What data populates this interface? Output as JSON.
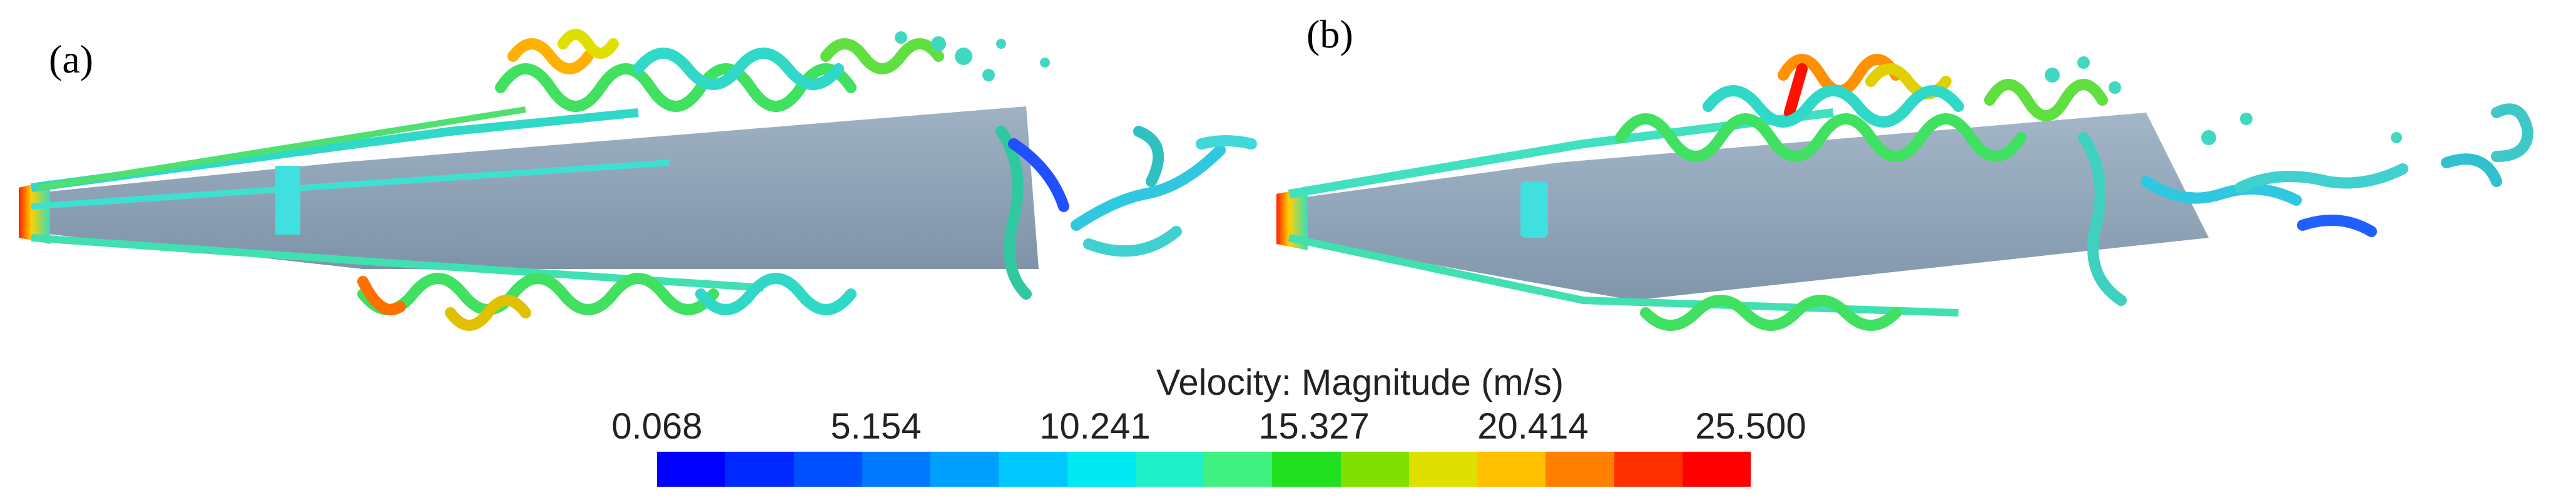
{
  "panels": {
    "a": {
      "label": "(a)"
    },
    "b": {
      "label": "(b)"
    }
  },
  "legend": {
    "title": "Velocity: Magnitude (m/s)",
    "ticks": [
      "0.068",
      "5.154",
      "10.241",
      "15.327",
      "20.414",
      "25.500"
    ],
    "min": 0.068,
    "max": 25.5,
    "colors": [
      "#0000ff",
      "#0028ff",
      "#0050ff",
      "#0078ff",
      "#00a0ff",
      "#00c8ff",
      "#00e8f0",
      "#20f0c8",
      "#40f080",
      "#20e020",
      "#80e000",
      "#e0e000",
      "#ffc000",
      "#ff8000",
      "#ff3000",
      "#ff0000"
    ]
  }
}
